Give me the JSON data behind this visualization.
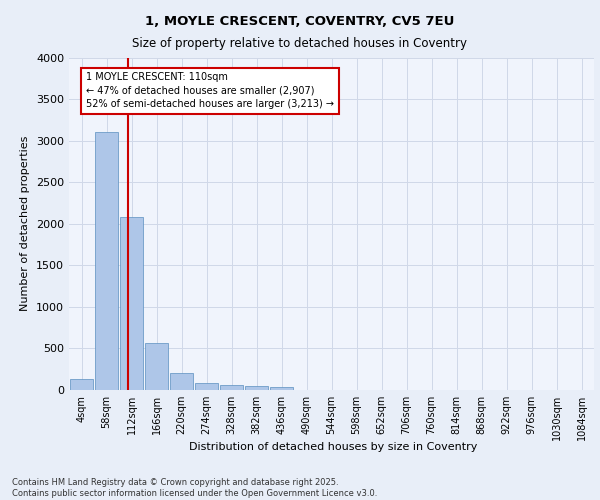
{
  "title_line1": "1, MOYLE CRESCENT, COVENTRY, CV5 7EU",
  "title_line2": "Size of property relative to detached houses in Coventry",
  "xlabel": "Distribution of detached houses by size in Coventry",
  "ylabel": "Number of detached properties",
  "footer_line1": "Contains HM Land Registry data © Crown copyright and database right 2025.",
  "footer_line2": "Contains public sector information licensed under the Open Government Licence v3.0.",
  "bar_labels": [
    "4sqm",
    "58sqm",
    "112sqm",
    "166sqm",
    "220sqm",
    "274sqm",
    "328sqm",
    "382sqm",
    "436sqm",
    "490sqm",
    "544sqm",
    "598sqm",
    "652sqm",
    "706sqm",
    "760sqm",
    "814sqm",
    "868sqm",
    "922sqm",
    "976sqm",
    "1030sqm",
    "1084sqm"
  ],
  "bar_values": [
    130,
    3100,
    2080,
    570,
    200,
    80,
    55,
    45,
    40,
    0,
    0,
    0,
    0,
    0,
    0,
    0,
    0,
    0,
    0,
    0,
    0
  ],
  "bar_color": "#aec6e8",
  "bar_edge_color": "#5a8fc0",
  "grid_color": "#d0d8e8",
  "background_color": "#e8eef8",
  "plot_background_color": "#f0f4fc",
  "annotation_text": "1 MOYLE CRESCENT: 110sqm\n← 47% of detached houses are smaller (2,907)\n52% of semi-detached houses are larger (3,213) →",
  "vline_x": 1.85,
  "vline_color": "#cc0000",
  "annotation_box_edge_color": "#cc0000",
  "ylim": [
    0,
    4000
  ],
  "yticks": [
    0,
    500,
    1000,
    1500,
    2000,
    2500,
    3000,
    3500,
    4000
  ]
}
